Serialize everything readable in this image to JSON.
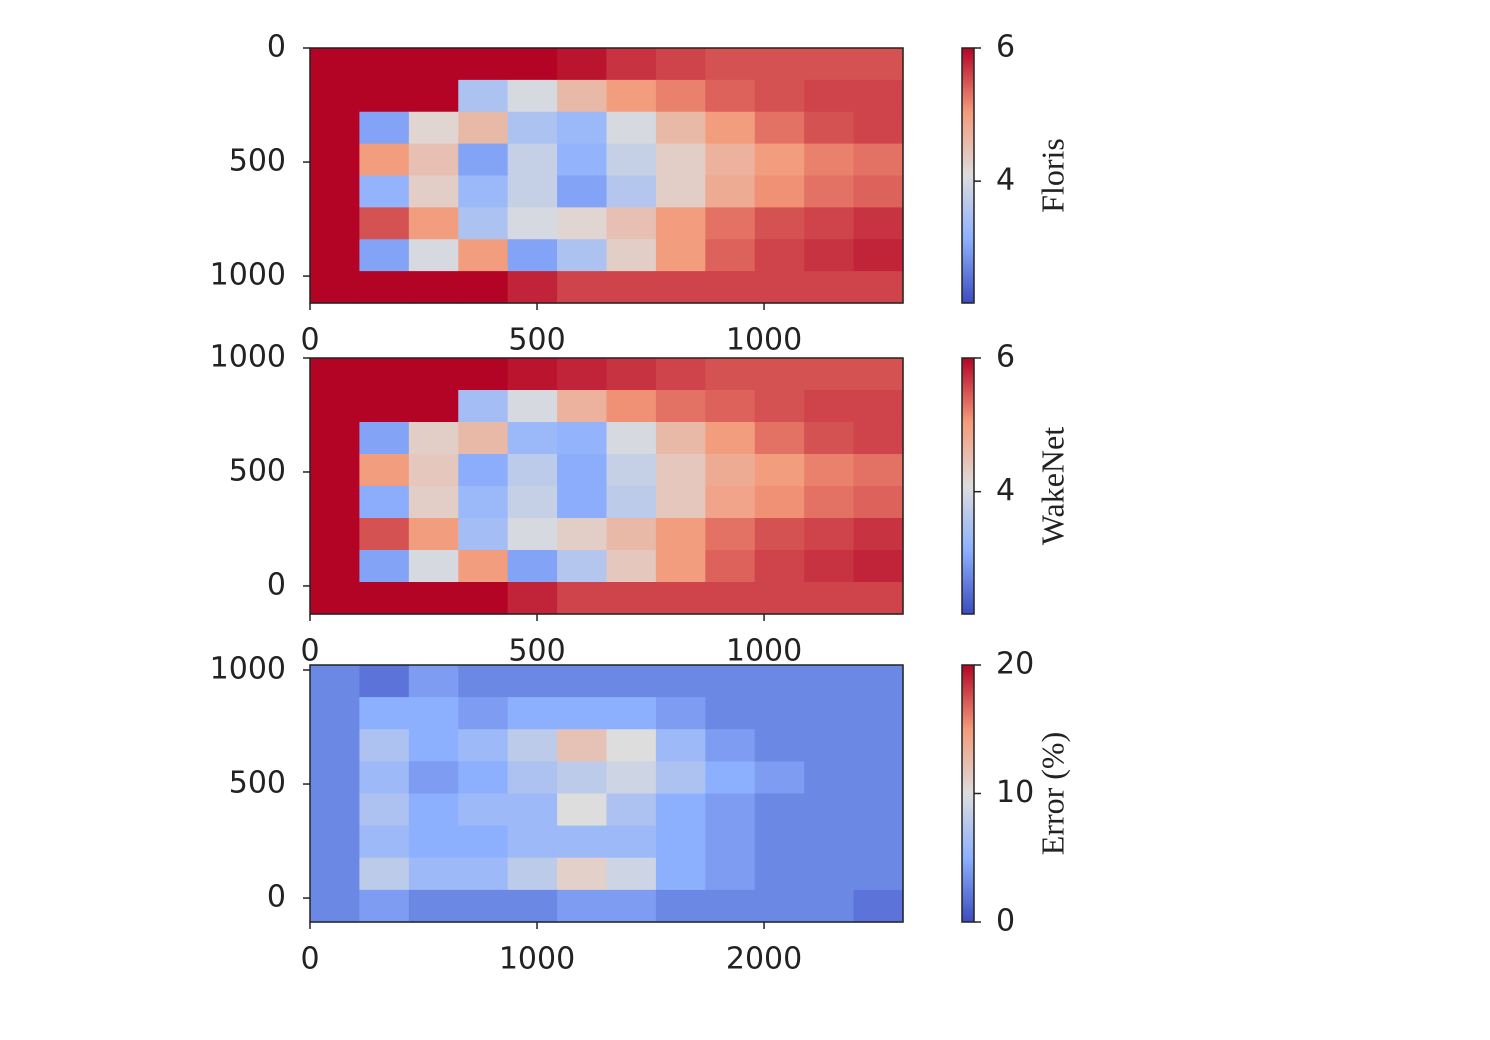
{
  "chart_data": [
    {
      "type": "heatmap",
      "xlim": [
        0,
        1306
      ],
      "ylim": [
        1118,
        0
      ],
      "xticks": [
        0,
        500,
        1000
      ],
      "yticks": [
        0,
        500,
        1000
      ],
      "colormap": [
        "#3b4cc0",
        "#8db0fe",
        "#dddddd",
        "#f49a7b",
        "#b40426"
      ],
      "colorbar": {
        "label": "Floris",
        "clim": [
          2.17,
          6
        ],
        "ticks": [
          4,
          6
        ]
      },
      "z": [
        [
          6,
          6,
          6,
          6,
          6,
          5.9,
          5.7,
          5.6,
          5.5,
          5.5,
          5.5,
          5.5
        ],
        [
          6,
          6,
          6,
          3.5,
          4,
          4.6,
          5,
          5.2,
          5.4,
          5.5,
          5.6,
          5.6
        ],
        [
          6,
          3,
          4.2,
          4.6,
          3.5,
          3.3,
          4,
          4.6,
          5,
          5.3,
          5.5,
          5.6
        ],
        [
          6,
          5,
          4.5,
          3,
          3.8,
          3.2,
          3.8,
          4.3,
          4.7,
          5,
          5.2,
          5.3
        ],
        [
          6,
          3.2,
          4.3,
          3.3,
          3.8,
          3,
          3.6,
          4.3,
          4.8,
          5.1,
          5.3,
          5.4
        ],
        [
          6,
          5.5,
          5,
          3.5,
          4,
          4.2,
          4.5,
          5,
          5.3,
          5.5,
          5.6,
          5.7
        ],
        [
          6,
          3,
          4,
          5,
          3,
          3.5,
          4.3,
          5,
          5.4,
          5.6,
          5.7,
          5.8
        ],
        [
          6,
          6,
          6,
          6,
          5.8,
          5.6,
          5.6,
          5.6,
          5.6,
          5.6,
          5.6,
          5.6
        ]
      ]
    },
    {
      "type": "heatmap",
      "xlim": [
        0,
        1306
      ],
      "ylim": [
        -123,
        1000
      ],
      "xticks": [
        0,
        500,
        1000
      ],
      "yticks": [
        0,
        500,
        1000
      ],
      "colormap": [
        "#3b4cc0",
        "#8db0fe",
        "#dddddd",
        "#f49a7b",
        "#b40426"
      ],
      "colorbar": {
        "label": "WakeNet",
        "clim": [
          2.17,
          6
        ],
        "ticks": [
          4,
          6
        ]
      },
      "z": [
        [
          6,
          6,
          6,
          6,
          5.9,
          5.8,
          5.7,
          5.6,
          5.5,
          5.5,
          5.5,
          5.5
        ],
        [
          6,
          6,
          6,
          3.4,
          4,
          4.7,
          5.1,
          5.3,
          5.4,
          5.5,
          5.6,
          5.6
        ],
        [
          6,
          3,
          4.3,
          4.6,
          3.3,
          3.2,
          4,
          4.6,
          5,
          5.3,
          5.5,
          5.6
        ],
        [
          6,
          5,
          4.4,
          3.1,
          3.7,
          3.1,
          3.8,
          4.4,
          4.8,
          5,
          5.2,
          5.3
        ],
        [
          6,
          3.1,
          4.3,
          3.3,
          3.8,
          3.1,
          3.7,
          4.4,
          4.9,
          5.1,
          5.3,
          5.4
        ],
        [
          6,
          5.5,
          5,
          3.4,
          4,
          4.3,
          4.6,
          5,
          5.3,
          5.5,
          5.6,
          5.7
        ],
        [
          6,
          3,
          4,
          5,
          3,
          3.6,
          4.4,
          5,
          5.4,
          5.6,
          5.7,
          5.8
        ],
        [
          6,
          6,
          6,
          6,
          5.8,
          5.6,
          5.6,
          5.6,
          5.6,
          5.6,
          5.6,
          5.6
        ]
      ]
    },
    {
      "type": "heatmap",
      "xlim": [
        0,
        2612
      ],
      "ylim": [
        -105,
        1022
      ],
      "xticks": [
        0,
        1000,
        2000
      ],
      "yticks": [
        0,
        500,
        1000
      ],
      "colormap": [
        "#3b4cc0",
        "#8db0fe",
        "#dddddd",
        "#f49a7b",
        "#b40426"
      ],
      "colorbar": {
        "label": "Error (%)",
        "clim": [
          0,
          20
        ],
        "ticks": [
          0,
          10,
          20
        ]
      },
      "z": [
        [
          3,
          2,
          4,
          3,
          3,
          3,
          3,
          3,
          3,
          3,
          3,
          3
        ],
        [
          3,
          5,
          5,
          4,
          5,
          5,
          5,
          4,
          3,
          3,
          3,
          3
        ],
        [
          3,
          7,
          5,
          6,
          8,
          12,
          10,
          6,
          4,
          3,
          3,
          3
        ],
        [
          3,
          6,
          4,
          5,
          7,
          8,
          9,
          7,
          5,
          4,
          3,
          3
        ],
        [
          3,
          7,
          5,
          6,
          6,
          10,
          7,
          5,
          4,
          3,
          3,
          3
        ],
        [
          3,
          6,
          5,
          5,
          6,
          6,
          6,
          5,
          4,
          3,
          3,
          3
        ],
        [
          3,
          8,
          6,
          6,
          8,
          11,
          9,
          5,
          4,
          3,
          3,
          3
        ],
        [
          3,
          4,
          3,
          3,
          3,
          4,
          4,
          3,
          3,
          3,
          3,
          2
        ]
      ]
    }
  ]
}
